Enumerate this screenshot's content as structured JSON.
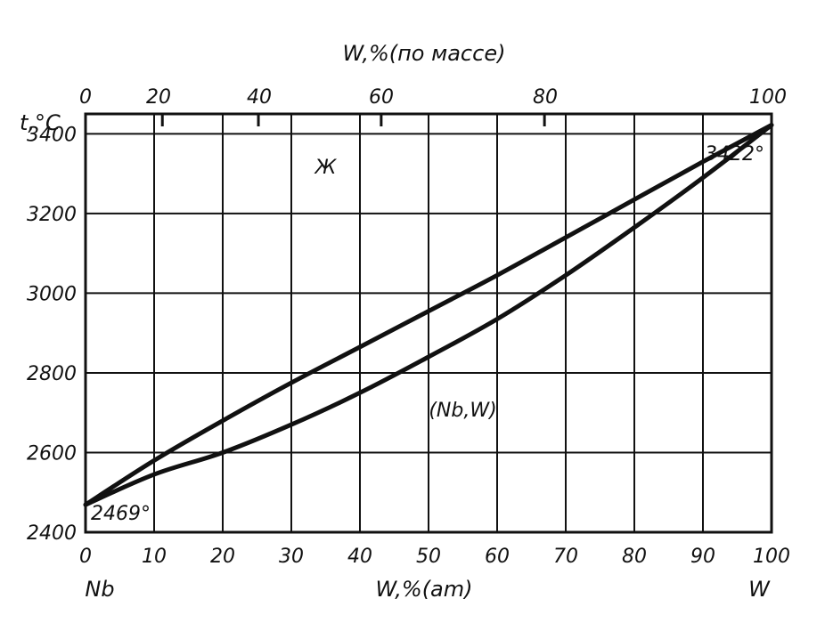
{
  "chart_data": {
    "type": "line",
    "top_axis": {
      "title": "W,%(по массе)",
      "ticks": [
        {
          "label": "0",
          "at_atomic": 0
        },
        {
          "label": "20",
          "at_atomic": 11.2
        },
        {
          "label": "40",
          "at_atomic": 25.2
        },
        {
          "label": "60",
          "at_atomic": 43.1
        },
        {
          "label": "80",
          "at_atomic": 66.9
        },
        {
          "label": "100",
          "at_atomic": 100
        }
      ]
    },
    "bottom_axis": {
      "title": "W,%(am)",
      "left_label": "Nb",
      "right_label": "W",
      "ticks": [
        "0",
        "10",
        "20",
        "30",
        "40",
        "50",
        "60",
        "70",
        "80",
        "90",
        "100"
      ],
      "xlim": [
        0,
        100
      ]
    },
    "y_axis": {
      "title": "t,°C",
      "ticks": [
        "2400",
        "2600",
        "2800",
        "3000",
        "3200",
        "3400"
      ],
      "ylim": [
        2400,
        3450
      ]
    },
    "grid": true,
    "series": [
      {
        "key": "liquidus",
        "x": [
          0,
          10,
          20,
          30,
          40,
          50,
          60,
          70,
          80,
          90,
          100
        ],
        "y": [
          2469,
          2580,
          2680,
          2775,
          2865,
          2955,
          3045,
          3140,
          3235,
          3330,
          3422
        ]
      },
      {
        "key": "solidus",
        "x": [
          0,
          10,
          20,
          30,
          40,
          50,
          60,
          70,
          80,
          90,
          100
        ],
        "y": [
          2469,
          2545,
          2600,
          2670,
          2750,
          2840,
          2935,
          3045,
          3165,
          3290,
          3422
        ]
      }
    ],
    "annotations": [
      {
        "text": "Ж",
        "x": 35,
        "y": 3300
      },
      {
        "text": "(Nb,W)",
        "x": 55,
        "y": 2690
      },
      {
        "text": "2469°",
        "x": 6,
        "y": 2440
      },
      {
        "text": "3422°",
        "x": 95,
        "y": 3490
      }
    ]
  }
}
